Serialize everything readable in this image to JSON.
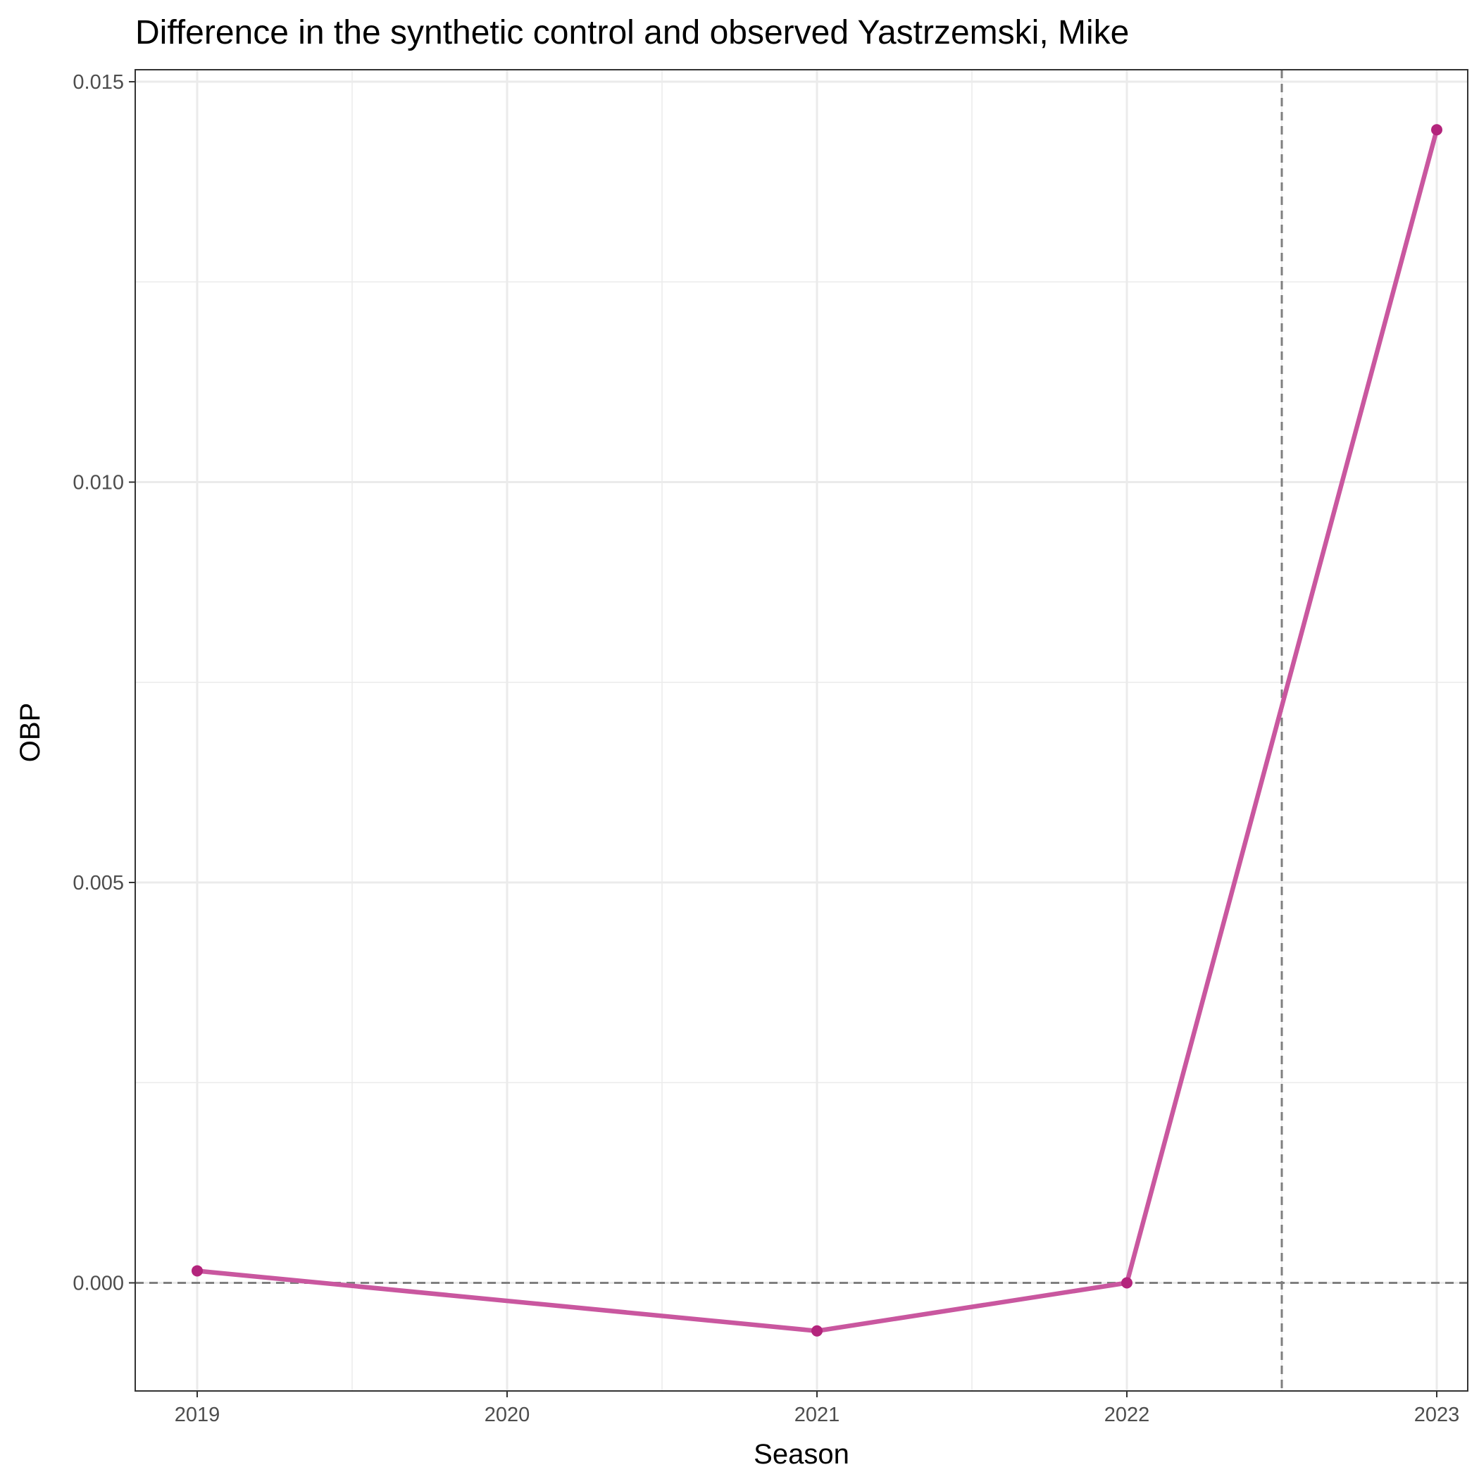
{
  "chart_data": {
    "type": "line",
    "title": "Difference in the synthetic control and observed Yastrzemski, Mike",
    "xlabel": "Season",
    "ylabel": "OBP",
    "x": [
      2019,
      2021,
      2022,
      2023
    ],
    "series": [
      {
        "values": [
          0.00015,
          -0.0006,
          0.0,
          0.0144
        ]
      }
    ],
    "xticks": [
      "2019",
      "2020",
      "2021",
      "2022",
      "2023"
    ],
    "yticks": [
      "0.000",
      "0.005",
      "0.010",
      "0.015"
    ],
    "xlim": [
      2018.8,
      2023.1
    ],
    "ylim": [
      -0.00135,
      0.01515
    ],
    "reference_lines": {
      "horizontal_y": 0.0,
      "vertical_x": 2022.5
    },
    "grid": true,
    "legend": "none",
    "colors": {
      "line": "#c9579f",
      "point": "#b3247c",
      "reference": "#7f7f7f",
      "grid": "#ebebeb",
      "border": "#333333"
    }
  }
}
